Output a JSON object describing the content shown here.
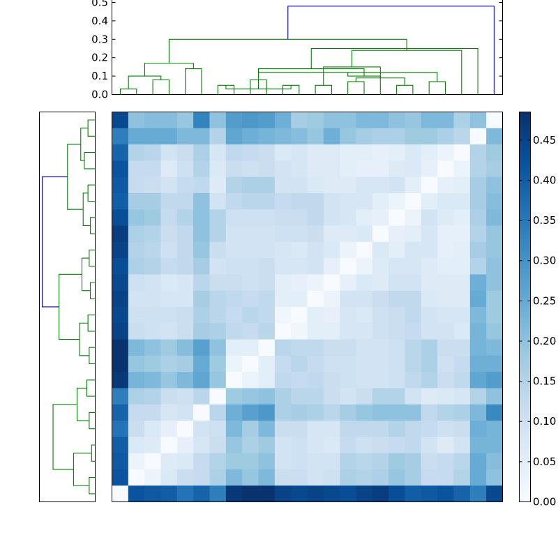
{
  "chart_data": {
    "type": "heatmap",
    "title": "",
    "xlabel": "",
    "ylabel": "",
    "n": 24,
    "colormap": "Blues",
    "colors": {
      "dendrogram_root": "#0000cc",
      "dendrogram_cluster": "#008000",
      "colormap_low": "#f7fbff",
      "colormap_high": "#08306b"
    },
    "top_dendrogram": {
      "yrange": [
        0,
        0.5
      ],
      "yticks": [
        "0.0",
        "0.1",
        "0.2",
        "0.3",
        "0.4",
        "0.5"
      ],
      "leaf_order": [
        0,
        1,
        2,
        3,
        4,
        5,
        6,
        7,
        8,
        9,
        10,
        11,
        12,
        13,
        14,
        15,
        16,
        17,
        18,
        19,
        20,
        21,
        22,
        23
      ],
      "merges": [
        [
          0,
          1,
          0.03
        ],
        [
          2,
          3,
          0.08
        ],
        [
          24,
          25,
          0.1
        ],
        [
          4,
          5,
          0.14
        ],
        [
          26,
          27,
          0.17
        ],
        [
          6,
          7,
          0.05
        ],
        [
          10,
          11,
          0.05
        ],
        [
          12,
          13,
          0.05
        ],
        [
          29,
          30,
          0.03
        ],
        [
          14,
          15,
          0.07
        ],
        [
          17,
          18,
          0.05
        ],
        [
          19,
          20,
          0.07
        ],
        [
          33,
          34,
          0.09
        ],
        [
          35,
          32,
          0.12
        ],
        [
          31,
          36,
          0.15
        ],
        [
          37,
          16,
          0.1
        ],
        [
          38,
          21,
          0.24
        ],
        [
          8,
          9,
          0.08
        ],
        [
          41,
          39,
          0.14
        ],
        [
          28,
          40,
          0.3
        ],
        [
          42,
          22,
          0.25
        ],
        [
          43,
          23,
          0.48
        ]
      ]
    },
    "left_dendrogram": {
      "merges": [
        [
          0,
          1,
          0.06
        ],
        [
          2,
          3,
          0.09
        ],
        [
          4,
          5,
          0.06
        ],
        [
          6,
          7,
          0.04
        ],
        [
          8,
          9,
          0.05
        ],
        [
          10,
          11,
          0.04
        ],
        [
          12,
          13,
          0.06
        ],
        [
          14,
          15,
          0.05
        ],
        [
          16,
          17,
          0.07
        ],
        [
          18,
          19,
          0.05
        ],
        [
          20,
          21,
          0.03
        ],
        [
          22,
          23,
          0.05
        ],
        [
          24,
          25,
          0.12
        ],
        [
          26,
          27,
          0.1
        ],
        [
          28,
          29,
          0.11
        ],
        [
          30,
          31,
          0.13
        ],
        [
          32,
          33,
          0.15
        ],
        [
          34,
          35,
          0.18
        ],
        [
          36,
          37,
          0.23
        ],
        [
          38,
          39,
          0.3
        ],
        [
          40,
          41,
          0.35
        ],
        [
          42,
          43,
          0.44
        ]
      ]
    },
    "colorbar": {
      "range": [
        0,
        0.485
      ],
      "ticks": [
        "0.00",
        "0.05",
        "0.10",
        "0.15",
        "0.20",
        "0.25",
        "0.30",
        "0.35",
        "0.40",
        "0.45"
      ]
    },
    "values": [
      [
        0.44,
        0.2,
        0.21,
        0.21,
        0.19,
        0.33,
        0.2,
        0.28,
        0.29,
        0.28,
        0.24,
        0.17,
        0.18,
        0.2,
        0.2,
        0.22,
        0.22,
        0.2,
        0.19,
        0.22,
        0.22,
        0.16,
        0.2,
        0.0
      ],
      [
        0.34,
        0.25,
        0.25,
        0.25,
        0.22,
        0.22,
        0.15,
        0.26,
        0.24,
        0.23,
        0.22,
        0.21,
        0.19,
        0.24,
        0.19,
        0.17,
        0.16,
        0.16,
        0.18,
        0.18,
        0.16,
        0.14,
        0.0,
        0.22
      ],
      [
        0.39,
        0.15,
        0.14,
        0.09,
        0.11,
        0.16,
        0.08,
        0.13,
        0.12,
        0.11,
        0.07,
        0.08,
        0.06,
        0.06,
        0.05,
        0.05,
        0.04,
        0.05,
        0.07,
        0.05,
        0.03,
        0.0,
        0.15,
        0.18
      ],
      [
        0.42,
        0.12,
        0.12,
        0.06,
        0.1,
        0.15,
        0.07,
        0.11,
        0.1,
        0.11,
        0.09,
        0.08,
        0.06,
        0.06,
        0.05,
        0.04,
        0.04,
        0.06,
        0.07,
        0.04,
        0.0,
        0.03,
        0.15,
        0.17
      ],
      [
        0.41,
        0.12,
        0.11,
        0.09,
        0.12,
        0.13,
        0.06,
        0.15,
        0.16,
        0.16,
        0.09,
        0.09,
        0.07,
        0.06,
        0.06,
        0.08,
        0.08,
        0.09,
        0.05,
        0.0,
        0.04,
        0.05,
        0.17,
        0.2
      ],
      [
        0.4,
        0.17,
        0.17,
        0.13,
        0.13,
        0.2,
        0.09,
        0.13,
        0.14,
        0.14,
        0.12,
        0.13,
        0.13,
        0.09,
        0.08,
        0.08,
        0.05,
        0.03,
        0.0,
        0.05,
        0.07,
        0.07,
        0.17,
        0.21
      ],
      [
        0.43,
        0.19,
        0.18,
        0.12,
        0.15,
        0.2,
        0.15,
        0.1,
        0.1,
        0.1,
        0.11,
        0.11,
        0.13,
        0.09,
        0.08,
        0.05,
        0.04,
        0.0,
        0.03,
        0.09,
        0.06,
        0.05,
        0.16,
        0.22
      ],
      [
        0.46,
        0.16,
        0.15,
        0.11,
        0.13,
        0.2,
        0.15,
        0.09,
        0.09,
        0.09,
        0.1,
        0.1,
        0.11,
        0.06,
        0.06,
        0.07,
        0.0,
        0.04,
        0.05,
        0.08,
        0.04,
        0.04,
        0.15,
        0.19
      ],
      [
        0.45,
        0.15,
        0.14,
        0.1,
        0.13,
        0.19,
        0.11,
        0.09,
        0.09,
        0.09,
        0.08,
        0.07,
        0.09,
        0.07,
        0.03,
        0.0,
        0.07,
        0.05,
        0.08,
        0.08,
        0.04,
        0.05,
        0.17,
        0.19
      ],
      [
        0.43,
        0.16,
        0.15,
        0.12,
        0.13,
        0.17,
        0.09,
        0.1,
        0.1,
        0.11,
        0.08,
        0.08,
        0.09,
        0.04,
        0.0,
        0.03,
        0.06,
        0.08,
        0.08,
        0.06,
        0.05,
        0.05,
        0.15,
        0.2
      ],
      [
        0.44,
        0.1,
        0.09,
        0.07,
        0.08,
        0.14,
        0.11,
        0.11,
        0.1,
        0.11,
        0.05,
        0.04,
        0.03,
        0.0,
        0.04,
        0.07,
        0.06,
        0.09,
        0.09,
        0.06,
        0.06,
        0.06,
        0.24,
        0.2
      ],
      [
        0.45,
        0.09,
        0.09,
        0.08,
        0.08,
        0.17,
        0.14,
        0.13,
        0.12,
        0.13,
        0.05,
        0.05,
        0.0,
        0.03,
        0.09,
        0.09,
        0.11,
        0.13,
        0.13,
        0.07,
        0.06,
        0.06,
        0.25,
        0.18
      ],
      [
        0.44,
        0.1,
        0.1,
        0.1,
        0.11,
        0.16,
        0.14,
        0.12,
        0.14,
        0.13,
        0.02,
        0.0,
        0.05,
        0.04,
        0.08,
        0.07,
        0.1,
        0.11,
        0.13,
        0.09,
        0.08,
        0.08,
        0.22,
        0.18
      ],
      [
        0.45,
        0.11,
        0.1,
        0.09,
        0.11,
        0.17,
        0.16,
        0.13,
        0.12,
        0.14,
        0.0,
        0.02,
        0.05,
        0.05,
        0.08,
        0.08,
        0.1,
        0.11,
        0.12,
        0.09,
        0.09,
        0.07,
        0.23,
        0.19
      ],
      [
        0.48,
        0.22,
        0.2,
        0.18,
        0.21,
        0.27,
        0.2,
        0.05,
        0.05,
        0.0,
        0.14,
        0.13,
        0.13,
        0.11,
        0.11,
        0.09,
        0.09,
        0.1,
        0.14,
        0.16,
        0.11,
        0.11,
        0.23,
        0.22
      ],
      [
        0.48,
        0.19,
        0.18,
        0.16,
        0.17,
        0.25,
        0.18,
        0.03,
        0.0,
        0.05,
        0.12,
        0.14,
        0.12,
        0.1,
        0.1,
        0.09,
        0.09,
        0.1,
        0.14,
        0.16,
        0.1,
        0.12,
        0.24,
        0.24
      ],
      [
        0.47,
        0.23,
        0.22,
        0.19,
        0.22,
        0.26,
        0.19,
        0.0,
        0.03,
        0.05,
        0.13,
        0.12,
        0.13,
        0.11,
        0.1,
        0.09,
        0.09,
        0.1,
        0.13,
        0.15,
        0.11,
        0.13,
        0.26,
        0.28
      ],
      [
        0.34,
        0.16,
        0.15,
        0.11,
        0.1,
        0.14,
        0.0,
        0.18,
        0.19,
        0.2,
        0.16,
        0.14,
        0.14,
        0.11,
        0.09,
        0.11,
        0.15,
        0.15,
        0.09,
        0.06,
        0.07,
        0.08,
        0.15,
        0.2
      ],
      [
        0.39,
        0.12,
        0.12,
        0.08,
        0.09,
        0.0,
        0.14,
        0.24,
        0.27,
        0.29,
        0.16,
        0.17,
        0.16,
        0.14,
        0.17,
        0.19,
        0.2,
        0.2,
        0.2,
        0.13,
        0.15,
        0.16,
        0.22,
        0.32
      ],
      [
        0.36,
        0.11,
        0.07,
        0.04,
        0.0,
        0.09,
        0.1,
        0.22,
        0.17,
        0.22,
        0.11,
        0.11,
        0.08,
        0.08,
        0.13,
        0.13,
        0.13,
        0.15,
        0.13,
        0.12,
        0.1,
        0.11,
        0.24,
        0.23
      ],
      [
        0.4,
        0.07,
        0.06,
        0.0,
        0.04,
        0.08,
        0.11,
        0.19,
        0.16,
        0.18,
        0.09,
        0.1,
        0.08,
        0.07,
        0.12,
        0.1,
        0.11,
        0.12,
        0.13,
        0.09,
        0.06,
        0.09,
        0.23,
        0.23
      ],
      [
        0.41,
        0.03,
        0.0,
        0.06,
        0.07,
        0.12,
        0.15,
        0.18,
        0.18,
        0.2,
        0.09,
        0.1,
        0.09,
        0.09,
        0.15,
        0.14,
        0.15,
        0.18,
        0.17,
        0.11,
        0.12,
        0.14,
        0.25,
        0.21
      ],
      [
        0.42,
        0.0,
        0.03,
        0.07,
        0.11,
        0.12,
        0.16,
        0.22,
        0.19,
        0.22,
        0.11,
        0.11,
        0.09,
        0.1,
        0.16,
        0.15,
        0.16,
        0.19,
        0.17,
        0.12,
        0.12,
        0.15,
        0.25,
        0.2
      ],
      [
        0.0,
        0.42,
        0.41,
        0.4,
        0.36,
        0.39,
        0.34,
        0.47,
        0.48,
        0.48,
        0.45,
        0.44,
        0.45,
        0.44,
        0.43,
        0.45,
        0.46,
        0.43,
        0.4,
        0.41,
        0.42,
        0.39,
        0.34,
        0.44
      ]
    ]
  }
}
